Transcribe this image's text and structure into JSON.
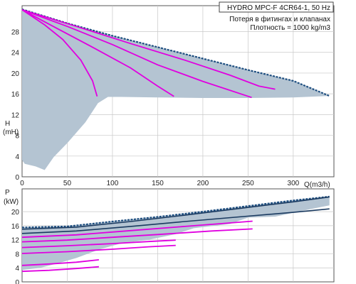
{
  "colors": {
    "band": "#b4c4d2",
    "envelope": "#1f4f80",
    "envelope_dark": "#1a3a60",
    "curve": "#e000e0",
    "grid": "#c8c8c8",
    "frame": "#555555"
  },
  "info_box": {
    "title": "HYDRO MPC-F 4CR64-1, 50 Hz",
    "line1": "Потеря в фитингах и клапанах",
    "line2": "Плотность = 1000 kg/m3"
  },
  "chart_data": [
    {
      "type": "line",
      "title": "HYDRO MPC-F 4CR64-1, 50 Hz",
      "xlabel": "Q(m3/h)",
      "ylabel": "H (mH)",
      "ylabel_top": "H",
      "ylabel_bottom": "(mH)",
      "xlim": [
        0,
        345
      ],
      "ylim": [
        0,
        33
      ],
      "xticks": [
        0,
        50,
        100,
        150,
        200,
        250,
        300
      ],
      "yticks": [
        0,
        4,
        8,
        12,
        16,
        20,
        24,
        28
      ],
      "band_upper": [
        [
          0,
          32.3
        ],
        [
          50,
          29.6
        ],
        [
          100,
          27.2
        ],
        [
          150,
          25.0
        ],
        [
          200,
          22.8
        ],
        [
          250,
          20.6
        ],
        [
          300,
          18.5
        ],
        [
          340,
          15.6
        ]
      ],
      "band_lower": [
        [
          340,
          15.6
        ],
        [
          300,
          15.3
        ],
        [
          250,
          15.2
        ],
        [
          200,
          15.2
        ],
        [
          150,
          15.3
        ],
        [
          110,
          15.4
        ],
        [
          95,
          15.4
        ],
        [
          84,
          14.2
        ],
        [
          70,
          10.5
        ],
        [
          50,
          6.5
        ],
        [
          35,
          3.8
        ],
        [
          25,
          1.3
        ],
        [
          15,
          2.0
        ],
        [
          3,
          2.5
        ],
        [
          0,
          3.2
        ]
      ],
      "series": [
        {
          "values": [
            [
              0,
              32.2
            ],
            [
              60,
              29.0
            ],
            [
              120,
              25.7
            ],
            [
              180,
              22.5
            ],
            [
              230,
              19.6
            ],
            [
              262,
              17.5
            ],
            [
              280,
              16.9
            ]
          ]
        },
        {
          "values": [
            [
              0,
              32.2
            ],
            [
              50,
              29.0
            ],
            [
              100,
              25.5
            ],
            [
              150,
              21.6
            ],
            [
              200,
              18.4
            ],
            [
              254,
              15.3
            ]
          ]
        },
        {
          "values": [
            [
              0,
              32.2
            ],
            [
              40,
              28.5
            ],
            [
              80,
              24.8
            ],
            [
              120,
              21.0
            ],
            [
              150,
              17.5
            ],
            [
              168,
              15.5
            ]
          ]
        },
        {
          "values": [
            [
              0,
              32.2
            ],
            [
              25,
              29.3
            ],
            [
              45,
              26.5
            ],
            [
              65,
              22.5
            ],
            [
              78,
              18.5
            ],
            [
              83,
              15.5
            ]
          ]
        }
      ]
    },
    {
      "type": "line",
      "ylabel": "P (kW)",
      "ylabel_top": "P",
      "ylabel_bottom": "(kW)",
      "xlim": [
        0,
        345
      ],
      "ylim": [
        0,
        26.5
      ],
      "yticks": [
        0,
        4,
        8,
        12,
        16,
        20
      ],
      "band_upper": [
        [
          0,
          15.5
        ],
        [
          50,
          15.8
        ],
        [
          100,
          17.2
        ],
        [
          150,
          18.5
        ],
        [
          200,
          20.0
        ],
        [
          250,
          21.6
        ],
        [
          300,
          23.2
        ],
        [
          340,
          24.3
        ]
      ],
      "band_lower": [
        [
          340,
          21.8
        ],
        [
          320,
          20.8
        ],
        [
          280,
          18.6
        ],
        [
          250,
          18.3
        ],
        [
          230,
          16.5
        ],
        [
          190,
          15.3
        ],
        [
          170,
          13.6
        ],
        [
          140,
          12.0
        ],
        [
          110,
          11.0
        ],
        [
          85,
          9.2
        ],
        [
          60,
          6.8
        ],
        [
          40,
          5.3
        ],
        [
          20,
          4.0
        ],
        [
          0,
          3.4
        ]
      ],
      "series": [
        {
          "values": [
            [
              0,
              15.0
            ],
            [
              60,
              15.6
            ],
            [
              120,
              17.2
            ],
            [
              180,
              19.0
            ],
            [
              240,
              20.9
            ],
            [
              300,
              22.8
            ],
            [
              340,
              24.2
            ]
          ]
        },
        {
          "values": [
            [
              0,
              13.8
            ],
            [
              60,
              14.5
            ],
            [
              120,
              15.8
            ],
            [
              180,
              17.2
            ],
            [
              240,
              18.5
            ],
            [
              300,
              19.8
            ],
            [
              340,
              20.8
            ]
          ]
        },
        {
          "values": [
            [
              0,
              12.7
            ],
            [
              60,
              13.4
            ],
            [
              120,
              14.6
            ],
            [
              180,
              15.8
            ],
            [
              230,
              16.8
            ],
            [
              255,
              17.3
            ]
          ]
        },
        {
          "values": [
            [
              0,
              11.4
            ],
            [
              50,
              11.9
            ],
            [
              100,
              12.7
            ],
            [
              150,
              13.5
            ],
            [
              180,
              14.0
            ],
            [
              210,
              14.5
            ],
            [
              255,
              15.1
            ]
          ]
        },
        {
          "values": [
            [
              0,
              9.8
            ],
            [
              50,
              10.3
            ],
            [
              100,
              10.9
            ],
            [
              140,
              11.5
            ],
            [
              170,
              11.9
            ]
          ]
        },
        {
          "values": [
            [
              0,
              8.1
            ],
            [
              50,
              8.6
            ],
            [
              100,
              9.3
            ],
            [
              140,
              10.0
            ],
            [
              170,
              10.4
            ]
          ]
        },
        {
          "values": [
            [
              0,
              4.7
            ],
            [
              30,
              5.1
            ],
            [
              60,
              5.6
            ],
            [
              85,
              6.3
            ]
          ]
        },
        {
          "values": [
            [
              0,
              3.0
            ],
            [
              30,
              3.3
            ],
            [
              60,
              3.8
            ],
            [
              85,
              4.3
            ]
          ]
        }
      ]
    }
  ]
}
